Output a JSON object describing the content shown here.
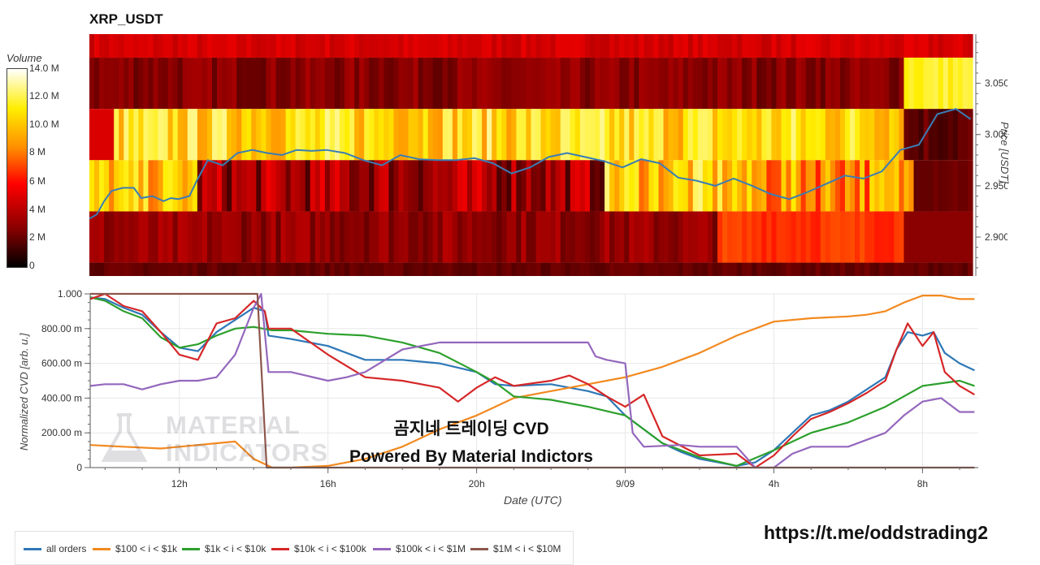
{
  "chart_data": [
    {
      "type": "heatmap",
      "title": "XRP_USDT",
      "ylabel": "Price [USDT]",
      "colorbar_title": "Volume",
      "colorbar_ticks": [
        "0",
        "2 M",
        "4 M",
        "6 M",
        "8 M",
        "10.0 M",
        "12.0 M",
        "14.0 M"
      ],
      "colorbar_range": [
        0,
        14.0
      ],
      "ylim": [
        2.862,
        3.098
      ],
      "y_ticks": [
        "2.900",
        "2.950",
        "3.000",
        "3.050"
      ],
      "y_tick_values": [
        2.9,
        2.95,
        3.0,
        3.05
      ],
      "price_bands": [
        2.875,
        2.925,
        2.975,
        3.025,
        3.075
      ],
      "price_line": {
        "x_hours": [
          9.6,
          9.8,
          10.0,
          10.2,
          10.5,
          10.8,
          11.0,
          11.3,
          11.6,
          11.8,
          12.0,
          12.3,
          12.5,
          12.8,
          13.2,
          13.6,
          14.0,
          14.4,
          14.8,
          15.2,
          15.6,
          16.0,
          16.5,
          17.0,
          17.5,
          18.0,
          18.5,
          19.0,
          19.5,
          20.0,
          20.5,
          21.0,
          21.5,
          22.0,
          22.5,
          23.0,
          23.5,
          24.0,
          24.5,
          25.0,
          25.5,
          26.0,
          26.5,
          27.0,
          27.5,
          28.0,
          28.5,
          29.0,
          29.5,
          30.0,
          30.5,
          31.0,
          31.5,
          32.0,
          32.5,
          33.0,
          33.4
        ],
        "values": [
          2.918,
          2.922,
          2.935,
          2.945,
          2.948,
          2.948,
          2.938,
          2.94,
          2.935,
          2.938,
          2.937,
          2.94,
          2.955,
          2.975,
          2.97,
          2.982,
          2.985,
          2.982,
          2.98,
          2.985,
          2.984,
          2.985,
          2.982,
          2.975,
          2.97,
          2.98,
          2.976,
          2.975,
          2.975,
          2.977,
          2.972,
          2.962,
          2.968,
          2.978,
          2.982,
          2.978,
          2.974,
          2.968,
          2.976,
          2.972,
          2.958,
          2.955,
          2.95,
          2.957,
          2.95,
          2.942,
          2.937,
          2.944,
          2.952,
          2.96,
          2.957,
          2.964,
          2.985,
          2.99,
          3.02,
          3.025,
          3.015
        ]
      },
      "colors": {
        "low": "#000000",
        "mid": "#ff0000",
        "high": "#ffee00",
        "max": "#ffffff",
        "price_line": "#3a7db5"
      }
    },
    {
      "type": "line",
      "xlabel": "Date (UTC)",
      "ylabel": "Normalized CVD [arb. u.]",
      "ylim": [
        0,
        1.0
      ],
      "xlim_hours": [
        9.6,
        33.5
      ],
      "y_ticks": [
        "0",
        "200.00 m",
        "400.00 m",
        "600.00 m",
        "800.00 m",
        "1.000"
      ],
      "y_tick_values": [
        0,
        0.2,
        0.4,
        0.6,
        0.8,
        1.0
      ],
      "x_ticks": [
        "12h",
        "16h",
        "20h",
        "9/09",
        "4h",
        "8h"
      ],
      "x_tick_hours": [
        12,
        16,
        20,
        24,
        28,
        32
      ],
      "series": [
        {
          "name": "all orders",
          "color": "#2e78b7",
          "x": [
            9.6,
            10.0,
            10.5,
            11.0,
            11.5,
            12.0,
            12.5,
            13.0,
            13.5,
            14.0,
            14.3,
            14.4,
            15.0,
            16.0,
            17.0,
            18.0,
            19.0,
            20.0,
            20.5,
            21.0,
            22.0,
            23.0,
            23.5,
            24.0,
            24.5,
            25.0,
            25.5,
            26.0,
            26.5,
            27.0,
            27.5,
            28.0,
            28.5,
            29.0,
            29.5,
            30.0,
            30.5,
            31.0,
            31.3,
            31.6,
            32.0,
            32.3,
            32.6,
            33.0,
            33.4
          ],
          "y": [
            0.98,
            0.97,
            0.92,
            0.88,
            0.78,
            0.69,
            0.67,
            0.78,
            0.85,
            0.92,
            0.9,
            0.76,
            0.74,
            0.7,
            0.62,
            0.62,
            0.6,
            0.55,
            0.48,
            0.47,
            0.48,
            0.44,
            0.41,
            0.3,
            0.22,
            0.14,
            0.09,
            0.05,
            0.03,
            0.01,
            0.03,
            0.1,
            0.2,
            0.3,
            0.33,
            0.38,
            0.45,
            0.52,
            0.68,
            0.78,
            0.76,
            0.78,
            0.66,
            0.6,
            0.56
          ]
        },
        {
          "name": "$100 < i < $1k",
          "color": "#f2891f",
          "x": [
            9.6,
            10.5,
            11.5,
            12.0,
            12.5,
            13.0,
            13.5,
            14.0,
            14.5,
            15.0,
            16.0,
            17.0,
            18.0,
            19.0,
            20.0,
            20.5,
            21.0,
            22.0,
            23.0,
            24.0,
            25.0,
            25.5,
            26.0,
            27.0,
            28.0,
            29.0,
            30.0,
            30.5,
            31.0,
            31.5,
            32.0,
            32.5,
            33.0,
            33.4
          ],
          "y": [
            0.13,
            0.12,
            0.11,
            0.12,
            0.13,
            0.14,
            0.15,
            0.05,
            0.0,
            0.0,
            0.01,
            0.05,
            0.12,
            0.22,
            0.3,
            0.35,
            0.4,
            0.44,
            0.48,
            0.52,
            0.58,
            0.62,
            0.66,
            0.76,
            0.84,
            0.86,
            0.87,
            0.88,
            0.9,
            0.95,
            0.99,
            0.99,
            0.97,
            0.97
          ]
        },
        {
          "name": "$1k < i < $10k",
          "color": "#2ca02c",
          "x": [
            9.6,
            10.0,
            10.5,
            11.0,
            11.5,
            12.0,
            12.5,
            13.0,
            13.5,
            14.0,
            14.5,
            15.0,
            16.0,
            17.0,
            18.0,
            19.0,
            20.0,
            20.5,
            21.0,
            22.0,
            23.0,
            24.0,
            25.0,
            26.0,
            27.0,
            28.0,
            29.0,
            30.0,
            31.0,
            32.0,
            33.0,
            33.4
          ],
          "y": [
            0.98,
            0.96,
            0.9,
            0.86,
            0.75,
            0.69,
            0.71,
            0.76,
            0.8,
            0.81,
            0.79,
            0.79,
            0.77,
            0.76,
            0.72,
            0.66,
            0.55,
            0.49,
            0.41,
            0.39,
            0.35,
            0.3,
            0.14,
            0.06,
            0.01,
            0.1,
            0.2,
            0.26,
            0.35,
            0.47,
            0.5,
            0.47
          ]
        },
        {
          "name": "$10k < i < $100k",
          "color": "#d62728",
          "x": [
            9.6,
            10.0,
            10.5,
            11.0,
            11.5,
            12.0,
            12.5,
            13.0,
            13.5,
            14.0,
            14.3,
            14.4,
            15.0,
            16.0,
            17.0,
            18.0,
            19.0,
            19.5,
            20.0,
            20.5,
            21.0,
            22.0,
            22.5,
            23.0,
            23.5,
            24.0,
            24.5,
            25.0,
            26.0,
            27.0,
            27.5,
            28.0,
            28.5,
            29.0,
            29.5,
            30.0,
            30.5,
            31.0,
            31.3,
            31.6,
            32.0,
            32.3,
            32.6,
            33.0,
            33.4
          ],
          "y": [
            0.97,
            1.0,
            0.93,
            0.9,
            0.78,
            0.65,
            0.62,
            0.83,
            0.86,
            0.96,
            0.9,
            0.8,
            0.8,
            0.65,
            0.52,
            0.5,
            0.46,
            0.38,
            0.46,
            0.52,
            0.47,
            0.5,
            0.53,
            0.48,
            0.41,
            0.35,
            0.42,
            0.18,
            0.07,
            0.08,
            0.0,
            0.07,
            0.18,
            0.28,
            0.32,
            0.37,
            0.43,
            0.5,
            0.68,
            0.83,
            0.7,
            0.78,
            0.55,
            0.47,
            0.42
          ]
        },
        {
          "name": "$100k < i < $1M",
          "color": "#9467bd",
          "x": [
            9.6,
            10.0,
            10.5,
            11.0,
            11.5,
            12.0,
            12.5,
            13.0,
            13.5,
            14.0,
            14.2,
            14.4,
            15.0,
            16.0,
            16.5,
            17.0,
            18.0,
            19.0,
            20.0,
            21.0,
            22.0,
            23.0,
            23.2,
            23.5,
            24.0,
            24.2,
            24.5,
            25.5,
            26.0,
            27.0,
            27.5,
            28.0,
            28.5,
            29.0,
            30.0,
            31.0,
            31.5,
            32.0,
            32.5,
            33.0,
            33.4
          ],
          "y": [
            0.47,
            0.48,
            0.48,
            0.45,
            0.48,
            0.5,
            0.5,
            0.52,
            0.65,
            0.92,
            1.0,
            0.55,
            0.55,
            0.5,
            0.52,
            0.55,
            0.68,
            0.72,
            0.72,
            0.72,
            0.72,
            0.72,
            0.64,
            0.62,
            0.6,
            0.2,
            0.12,
            0.13,
            0.12,
            0.12,
            0.0,
            0.0,
            0.08,
            0.12,
            0.12,
            0.2,
            0.3,
            0.38,
            0.4,
            0.32,
            0.32
          ]
        },
        {
          "name": "$1M < i < $10M",
          "color": "#8c564b",
          "x": [
            9.6,
            14.1,
            14.35,
            33.4
          ],
          "y": [
            1.0,
            1.0,
            0.0,
            0.0
          ]
        }
      ]
    }
  ],
  "overlay": {
    "caption_line1": "곰지네 트레이딩 CVD",
    "caption_line2": "Powered By Material Indictors",
    "link": "https://t.me/oddstrading2",
    "watermark_line1": "MATERIAL",
    "watermark_line2": "INDICATORS"
  }
}
